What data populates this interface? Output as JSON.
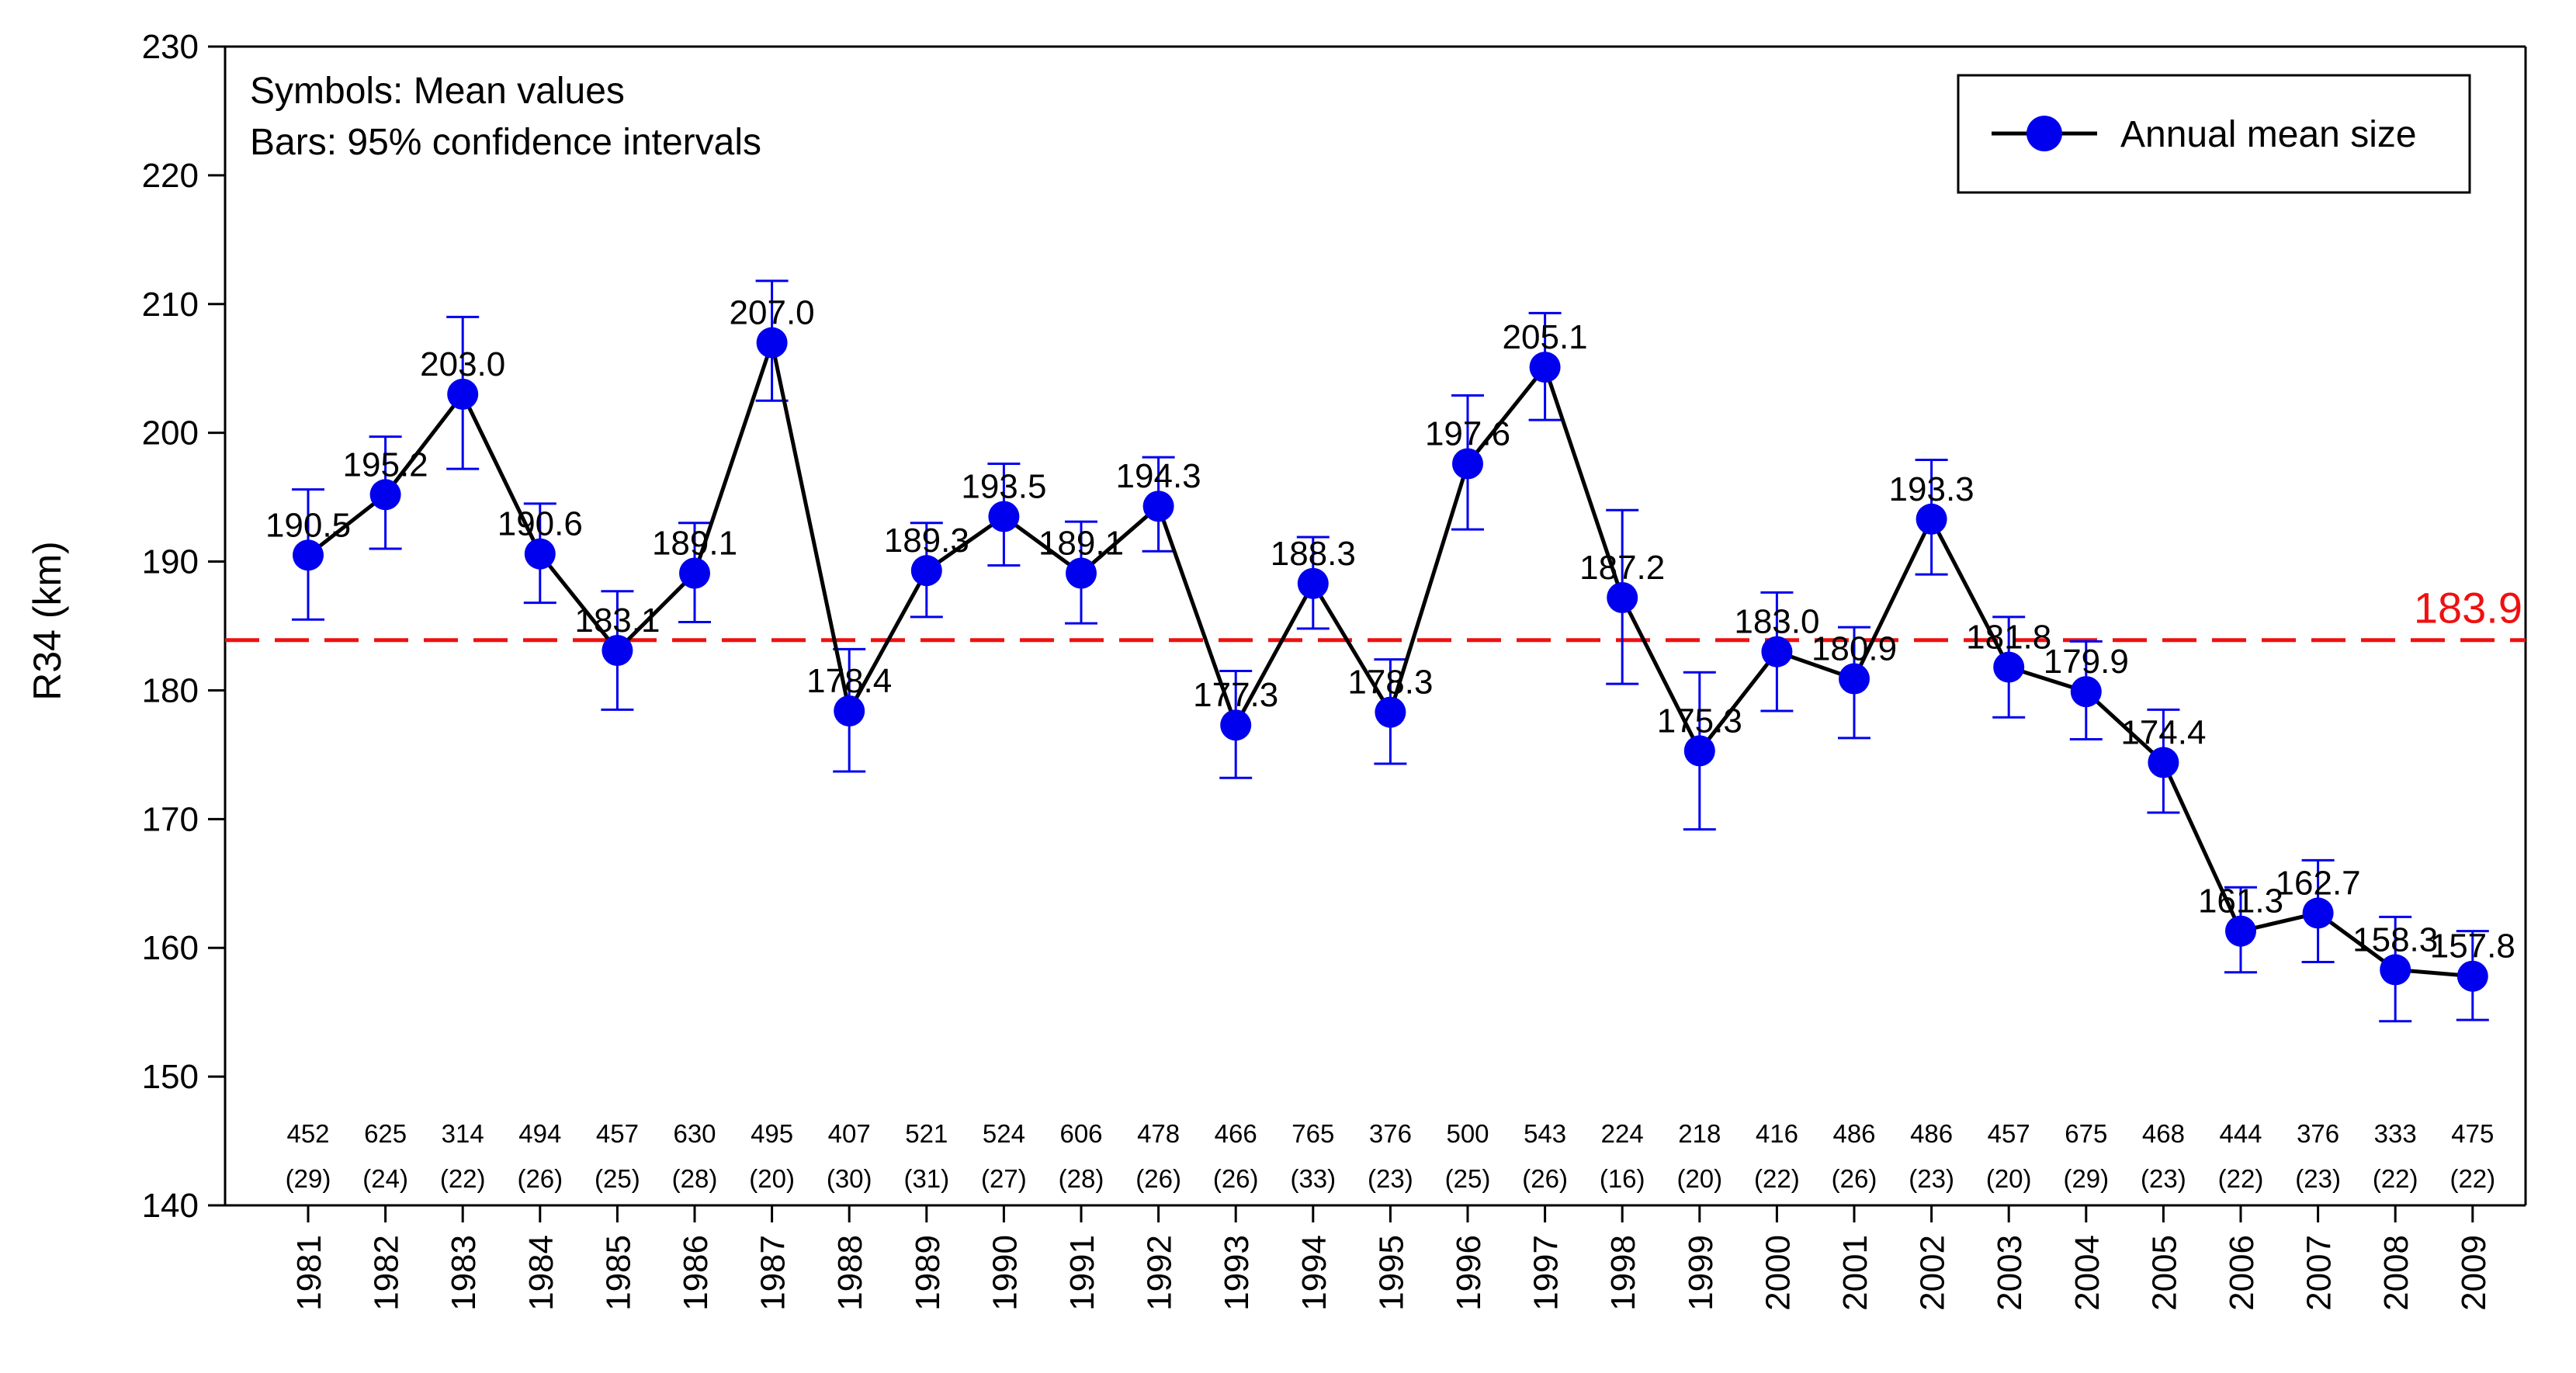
{
  "chart_data": {
    "type": "line",
    "title": "",
    "ylabel": "R34 (km)",
    "xlabel": "",
    "ylim": [
      140,
      230
    ],
    "yticks": [
      140,
      150,
      160,
      170,
      180,
      190,
      200,
      210,
      220,
      230
    ],
    "categories": [
      "1981",
      "1982",
      "1983",
      "1984",
      "1985",
      "1986",
      "1987",
      "1988",
      "1989",
      "1990",
      "1991",
      "1992",
      "1993",
      "1994",
      "1995",
      "1996",
      "1997",
      "1998",
      "1999",
      "2000",
      "2001",
      "2002",
      "2003",
      "2004",
      "2005",
      "2006",
      "2007",
      "2008",
      "2009"
    ],
    "series": [
      {
        "name": "Annual mean size",
        "values": [
          190.5,
          195.2,
          203.0,
          190.6,
          183.1,
          189.1,
          207.0,
          178.4,
          189.3,
          193.5,
          189.1,
          194.3,
          177.3,
          188.3,
          178.3,
          197.6,
          205.1,
          187.2,
          175.3,
          183.0,
          180.9,
          193.3,
          181.8,
          179.9,
          174.4,
          161.3,
          162.7,
          158.3,
          157.8
        ],
        "value_labels": [
          "190.5",
          "195.2",
          "203.0",
          "190.6",
          "183.1",
          "189.1",
          "207.0",
          "178.4",
          "189.3",
          "193.5",
          "189.1",
          "194.3",
          "177.3",
          "188.3",
          "178.3",
          "197.6",
          "205.1",
          "187.2",
          "175.3",
          "183.0",
          "180.9",
          "193.3",
          "181.8",
          "179.9",
          "174.4",
          "161.3",
          "162.7",
          "158.3",
          "157.8"
        ],
        "ci_lower": [
          185.5,
          191.0,
          197.2,
          186.8,
          178.5,
          185.3,
          202.5,
          173.7,
          185.7,
          189.7,
          185.2,
          190.8,
          173.2,
          184.8,
          174.3,
          192.5,
          201.0,
          180.5,
          169.2,
          178.4,
          176.3,
          189.0,
          177.9,
          176.2,
          170.5,
          158.1,
          158.9,
          154.3,
          154.4
        ],
        "ci_upper": [
          195.6,
          199.7,
          209.0,
          194.5,
          187.7,
          193.0,
          211.8,
          183.2,
          193.0,
          197.6,
          193.1,
          198.1,
          181.5,
          191.9,
          182.4,
          202.9,
          209.3,
          194.0,
          181.4,
          187.6,
          184.9,
          197.9,
          185.7,
          183.8,
          178.5,
          164.7,
          166.8,
          162.4,
          161.3
        ],
        "color": "#0000ee",
        "line_color": "#000000"
      }
    ],
    "counts": [
      "452",
      "625",
      "314",
      "494",
      "457",
      "630",
      "495",
      "407",
      "521",
      "524",
      "606",
      "478",
      "466",
      "765",
      "376",
      "500",
      "543",
      "224",
      "218",
      "416",
      "486",
      "486",
      "457",
      "675",
      "468",
      "444",
      "376",
      "333",
      "475"
    ],
    "sub_counts": [
      "(29)",
      "(24)",
      "(22)",
      "(26)",
      "(25)",
      "(28)",
      "(20)",
      "(30)",
      "(31)",
      "(27)",
      "(28)",
      "(26)",
      "(26)",
      "(33)",
      "(23)",
      "(25)",
      "(26)",
      "(16)",
      "(20)",
      "(22)",
      "(26)",
      "(23)",
      "(20)",
      "(29)",
      "(23)",
      "(22)",
      "(23)",
      "(22)",
      "(22)"
    ],
    "reference_line": {
      "value": 183.9,
      "label": "183.9",
      "color": "#ee1111"
    },
    "annotations": [
      "Symbols: Mean values",
      "Bars: 95% confidence intervals"
    ],
    "legend": {
      "label": "Annual mean size",
      "position": "top-right"
    },
    "grid": false
  }
}
